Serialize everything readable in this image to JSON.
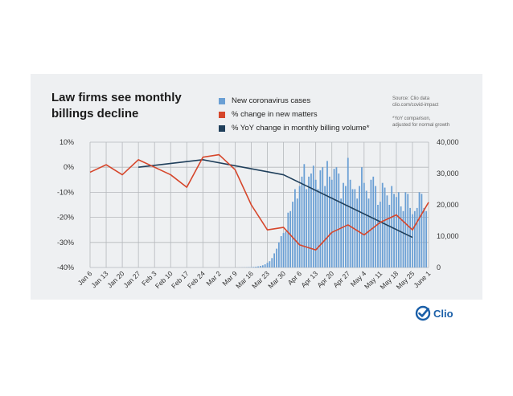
{
  "colors": {
    "panel": "#eef0f2",
    "bars": "#6a9fd4",
    "matters": "#d6462b",
    "billing": "#1f3f5b",
    "grid": "#b5b8bc",
    "brand": "#1a5fa8"
  },
  "title_lines": [
    "Law firms see monthly",
    "billings decline"
  ],
  "source_lines": [
    "Source: Clio data",
    "clio.com/covid-impact"
  ],
  "footnote_lines": [
    "*YoY comparison,",
    "adjusted for normal growth"
  ],
  "logo": {
    "icon": "check-circle-icon",
    "text": "Clio"
  },
  "chart_data": {
    "type": "bar+line",
    "title": "Law firms see monthly billings decline",
    "legend": [
      {
        "label": "New coronavirus cases",
        "color": "#6a9fd4"
      },
      {
        "label": "% change in new matters",
        "color": "#d6462b"
      },
      {
        "label": "% YoY change in monthly billing volume*",
        "color": "#1f3f5b"
      }
    ],
    "legend_position": "top-right",
    "left_axis": {
      "ticks": [
        "10%",
        "0%",
        "-10%",
        "-20%",
        "-30%",
        "-40%"
      ],
      "min": -40,
      "max": 10
    },
    "right_axis": {
      "ticks": [
        "40,000",
        "30,000",
        "20,000",
        "10,000",
        "0"
      ],
      "min": 0,
      "max": 40000
    },
    "x_ticks": [
      "Jan 6",
      "Jan 13",
      "Jan 20",
      "Jan 27",
      "Feb 3",
      "Feb 10",
      "Feb 17",
      "Feb 24",
      "Mar 2",
      "Mar 9",
      "Mar 16",
      "Mar 23",
      "Mar 30",
      "Apr 6",
      "Apr 13",
      "Apr 20",
      "Apr 27",
      "May 4",
      "May 11",
      "May 18",
      "May 25",
      "June 1"
    ],
    "grid": true,
    "series": [
      {
        "name": "% change in new matters",
        "axis": "left",
        "x": [
          0,
          1,
          2,
          3,
          4,
          5,
          6,
          7,
          8,
          9,
          10,
          11,
          12,
          13,
          14,
          15,
          16,
          17,
          18,
          19,
          20,
          21
        ],
        "values": [
          -2,
          1,
          -3,
          3,
          0,
          -3,
          -8,
          4,
          5,
          -1,
          -15,
          -25,
          -24,
          -31,
          -33,
          -26,
          -23,
          -27,
          -22,
          -19,
          -25,
          -14
        ]
      },
      {
        "name": "% YoY change in monthly billing volume*",
        "axis": "left",
        "x": [
          3,
          7,
          12,
          20
        ],
        "values": [
          0,
          3,
          -3,
          -28
        ]
      },
      {
        "name": "New coronavirus cases",
        "axis": "right",
        "start_x": 7,
        "step": 0.142857,
        "values": [
          0,
          0,
          0,
          0,
          0,
          0,
          0,
          0,
          0,
          0,
          0,
          0,
          0,
          0,
          0,
          0,
          20,
          30,
          40,
          60,
          90,
          120,
          180,
          250,
          350,
          500,
          700,
          1000,
          1500,
          2000,
          3000,
          4500,
          6000,
          8000,
          10000,
          11000,
          11500,
          17500,
          18000,
          21000,
          25000,
          22000,
          26000,
          29000,
          33000,
          25000,
          29000,
          30000,
          32500,
          28000,
          25000,
          31000,
          32000,
          26000,
          34000,
          29000,
          28000,
          31500,
          32000,
          30000,
          22000,
          27000,
          26000,
          35000,
          28000,
          25000,
          25000,
          22000,
          26000,
          32000,
          27000,
          24500,
          22000,
          28000,
          29000,
          26000,
          20000,
          21000,
          27000,
          25500,
          23000,
          20000,
          26000,
          23500,
          22500,
          24000,
          19500,
          18000,
          24000,
          23500,
          19000,
          17000,
          18000,
          19000,
          24000,
          23500,
          19000,
          18000
        ]
      }
    ]
  }
}
